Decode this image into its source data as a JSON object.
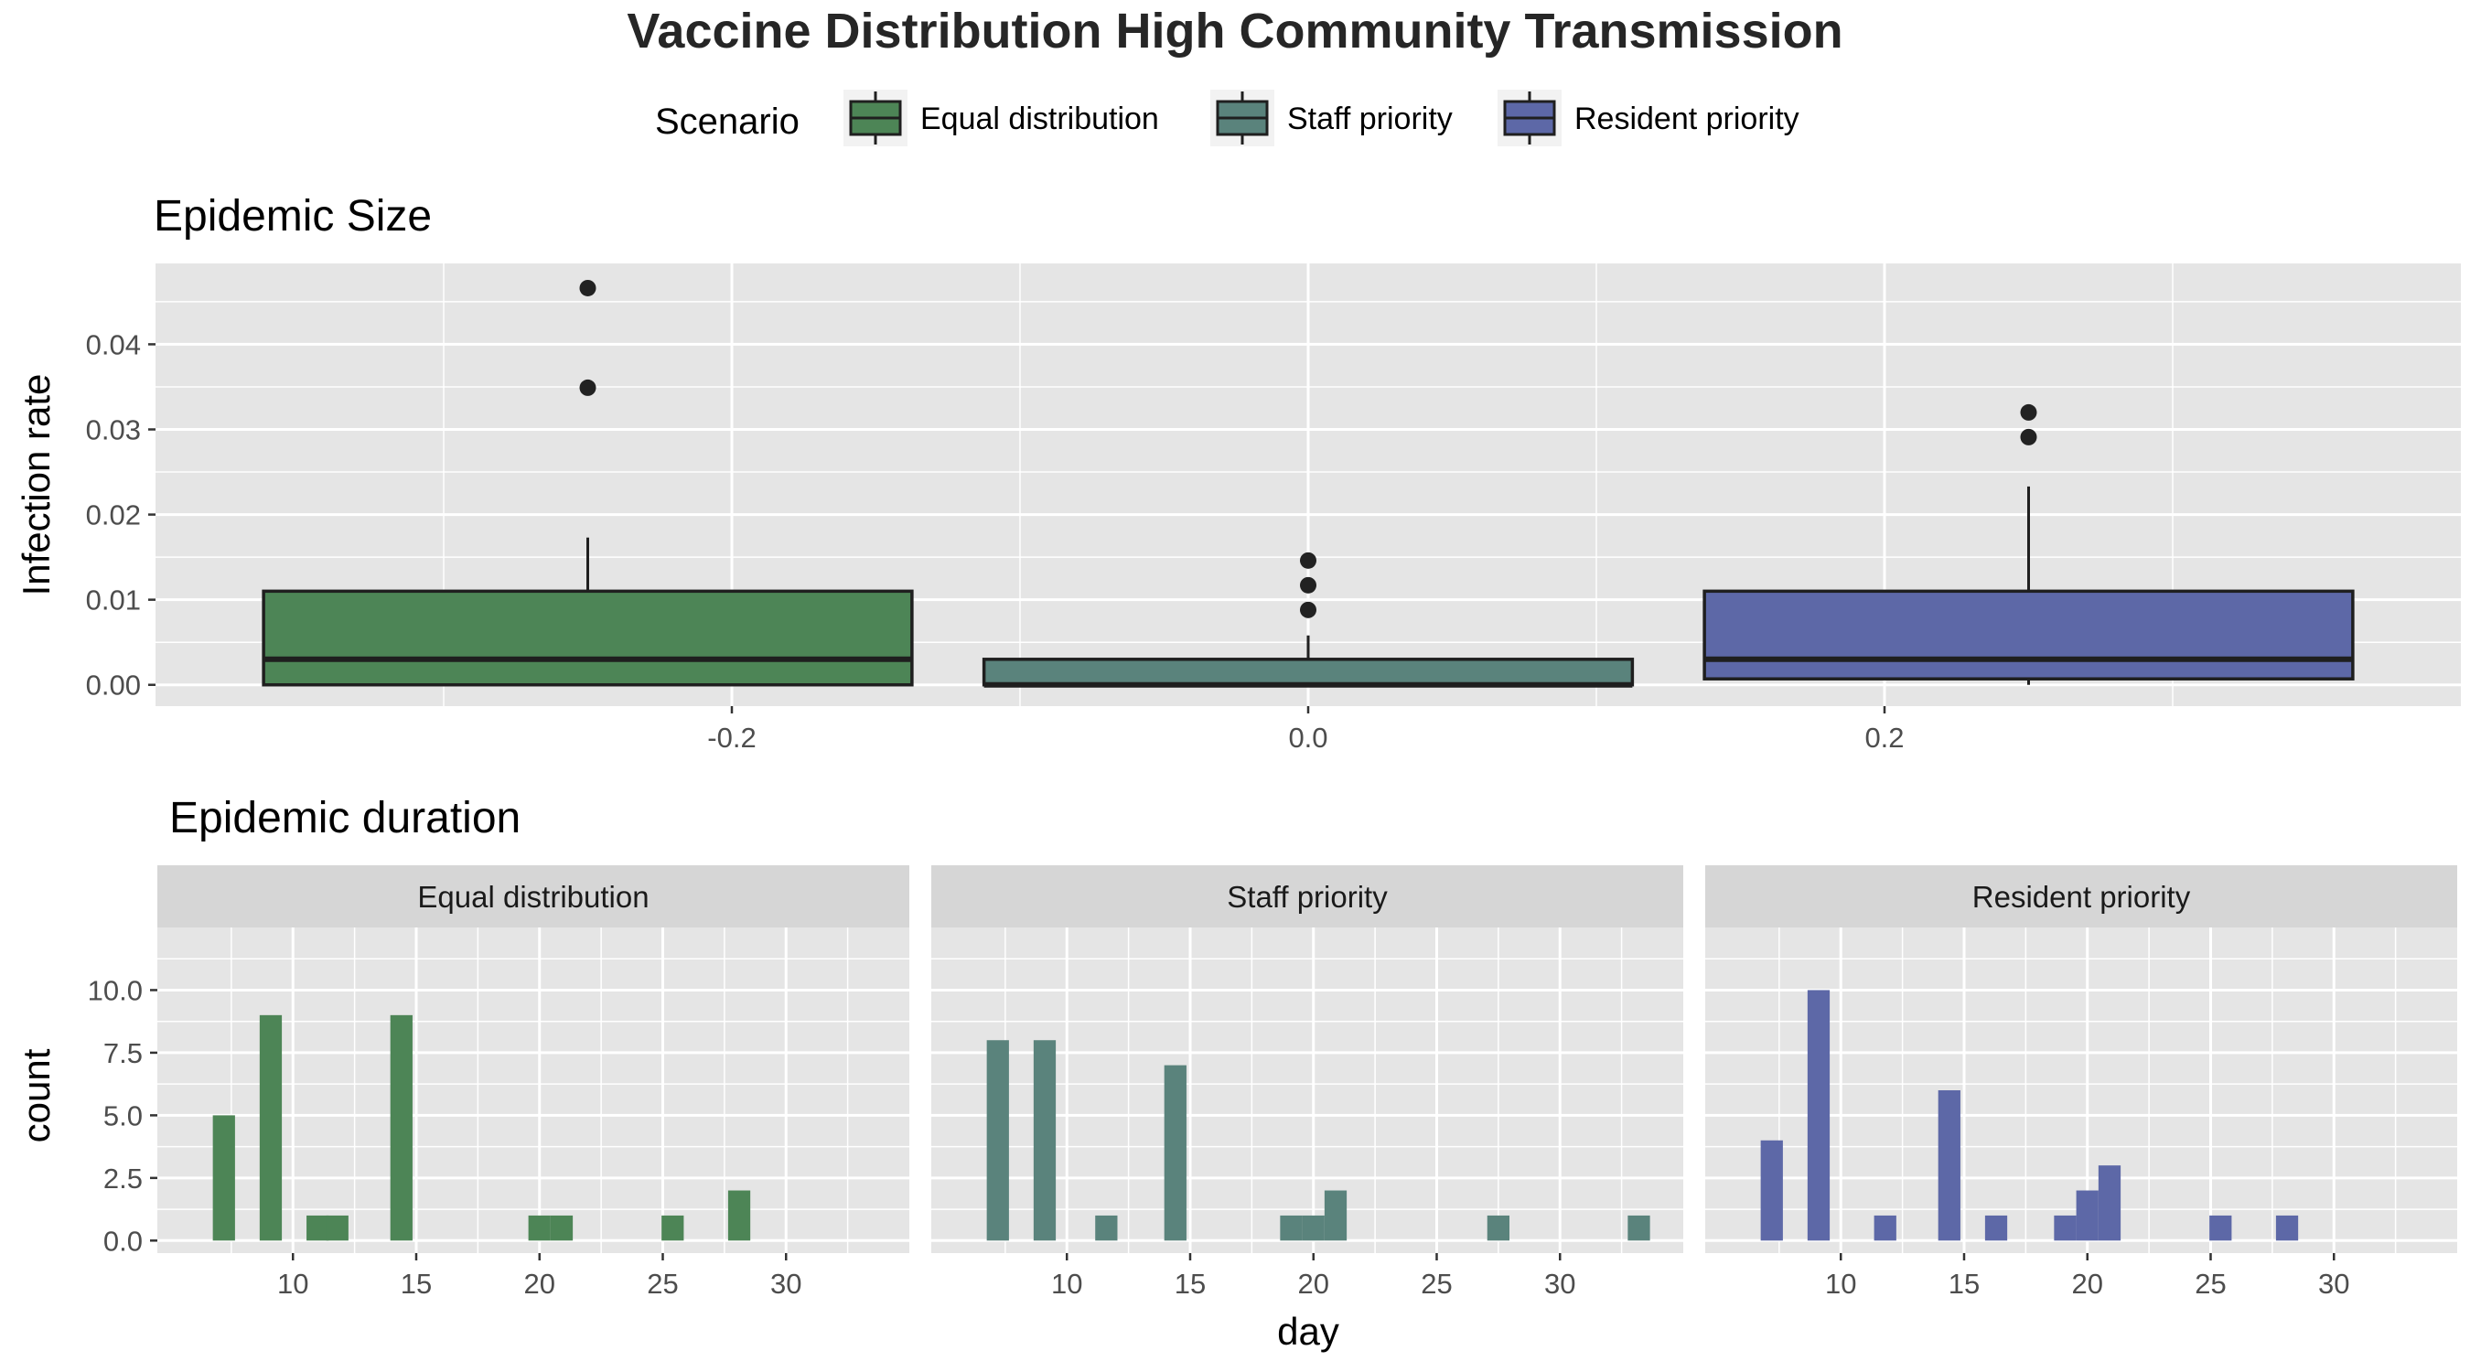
{
  "title": "Vaccine Distribution High Community Transmission",
  "legend": {
    "title": "Scenario",
    "entries": [
      {
        "label": "Equal distribution",
        "color": "#4d8556"
      },
      {
        "label": "Staff priority",
        "color": "#5a837c"
      },
      {
        "label": "Resident priority",
        "color": "#5d68a7"
      }
    ]
  },
  "colors": {
    "panel_bg": "#e5e5e5",
    "grid": "#ffffff",
    "strip_bg": "#d6d6d6",
    "box_outline": "#1f1f1f"
  },
  "chart_data": [
    {
      "type": "box",
      "subtitle": "Epidemic Size",
      "ylabel": "Infection rate",
      "xlabel": "",
      "xlim": [
        -0.4,
        0.4
      ],
      "ylim": [
        -0.0025,
        0.0495
      ],
      "x_ticks": [
        -0.2,
        0.0,
        0.2
      ],
      "x_tick_labels": [
        "-0.2",
        "0.0",
        "0.2"
      ],
      "y_ticks": [
        0,
        0.01,
        0.02,
        0.03,
        0.04
      ],
      "y_tick_labels": [
        "0.00",
        "0.01",
        "0.02",
        "0.03",
        "0.04"
      ],
      "grid": true,
      "boxes": [
        {
          "series": "Equal distribution",
          "x_left": -0.3625,
          "x_right": -0.1375,
          "center": -0.25,
          "min": 0.0,
          "q1": 0.0,
          "median": 0.003,
          "q3": 0.011,
          "whisker_high": 0.0173,
          "outliers": [
            0.0349,
            0.0466
          ]
        },
        {
          "series": "Staff priority",
          "x_left": -0.1125,
          "x_right": 0.1125,
          "center": 0.0,
          "min": 0.0,
          "q1": 0.0,
          "median": 0.0,
          "q3": 0.003,
          "whisker_high": 0.0058,
          "outliers": [
            0.0088,
            0.0117,
            0.0146
          ]
        },
        {
          "series": "Resident priority",
          "x_left": 0.1375,
          "x_right": 0.3625,
          "center": 0.25,
          "min": 0.0,
          "q1": 0.0007,
          "median": 0.003,
          "q3": 0.011,
          "whisker_high": 0.0233,
          "outliers": [
            0.0291,
            0.032
          ]
        }
      ]
    },
    {
      "type": "bar",
      "subtitle": "Epidemic duration",
      "xlabel": "day",
      "ylabel": "count",
      "xlim": [
        4.5,
        35
      ],
      "ylim": [
        -0.5,
        12.5
      ],
      "x_ticks": [
        10,
        15,
        20,
        25,
        30
      ],
      "y_ticks": [
        0,
        2.5,
        5,
        7.5,
        10
      ],
      "y_tick_labels": [
        "0.0",
        "2.5",
        "5.0",
        "7.5",
        "10.0"
      ],
      "grid": true,
      "bin_width": 0.9,
      "panels": [
        {
          "name": "Equal distribution",
          "color": "#4d8556",
          "bars": [
            {
              "x": 7.2,
              "count": 5
            },
            {
              "x": 9.1,
              "count": 9
            },
            {
              "x": 11.0,
              "count": 1
            },
            {
              "x": 11.8,
              "count": 1
            },
            {
              "x": 14.4,
              "count": 9
            },
            {
              "x": 20.0,
              "count": 1
            },
            {
              "x": 20.9,
              "count": 1
            },
            {
              "x": 25.4,
              "count": 1
            },
            {
              "x": 28.1,
              "count": 2
            }
          ]
        },
        {
          "name": "Staff priority",
          "color": "#5a837c",
          "bars": [
            {
              "x": 7.2,
              "count": 8
            },
            {
              "x": 9.1,
              "count": 8
            },
            {
              "x": 11.6,
              "count": 1
            },
            {
              "x": 14.4,
              "count": 7
            },
            {
              "x": 19.1,
              "count": 1
            },
            {
              "x": 20.0,
              "count": 1
            },
            {
              "x": 20.9,
              "count": 2
            },
            {
              "x": 27.5,
              "count": 1
            },
            {
              "x": 33.2,
              "count": 1
            }
          ]
        },
        {
          "name": "Resident priority",
          "color": "#5d68a7",
          "bars": [
            {
              "x": 7.2,
              "count": 4
            },
            {
              "x": 9.1,
              "count": 10
            },
            {
              "x": 11.8,
              "count": 1
            },
            {
              "x": 14.4,
              "count": 6
            },
            {
              "x": 16.3,
              "count": 1
            },
            {
              "x": 19.1,
              "count": 1
            },
            {
              "x": 20.0,
              "count": 2
            },
            {
              "x": 20.9,
              "count": 3
            },
            {
              "x": 25.4,
              "count": 1
            },
            {
              "x": 28.1,
              "count": 1
            }
          ]
        }
      ]
    }
  ]
}
